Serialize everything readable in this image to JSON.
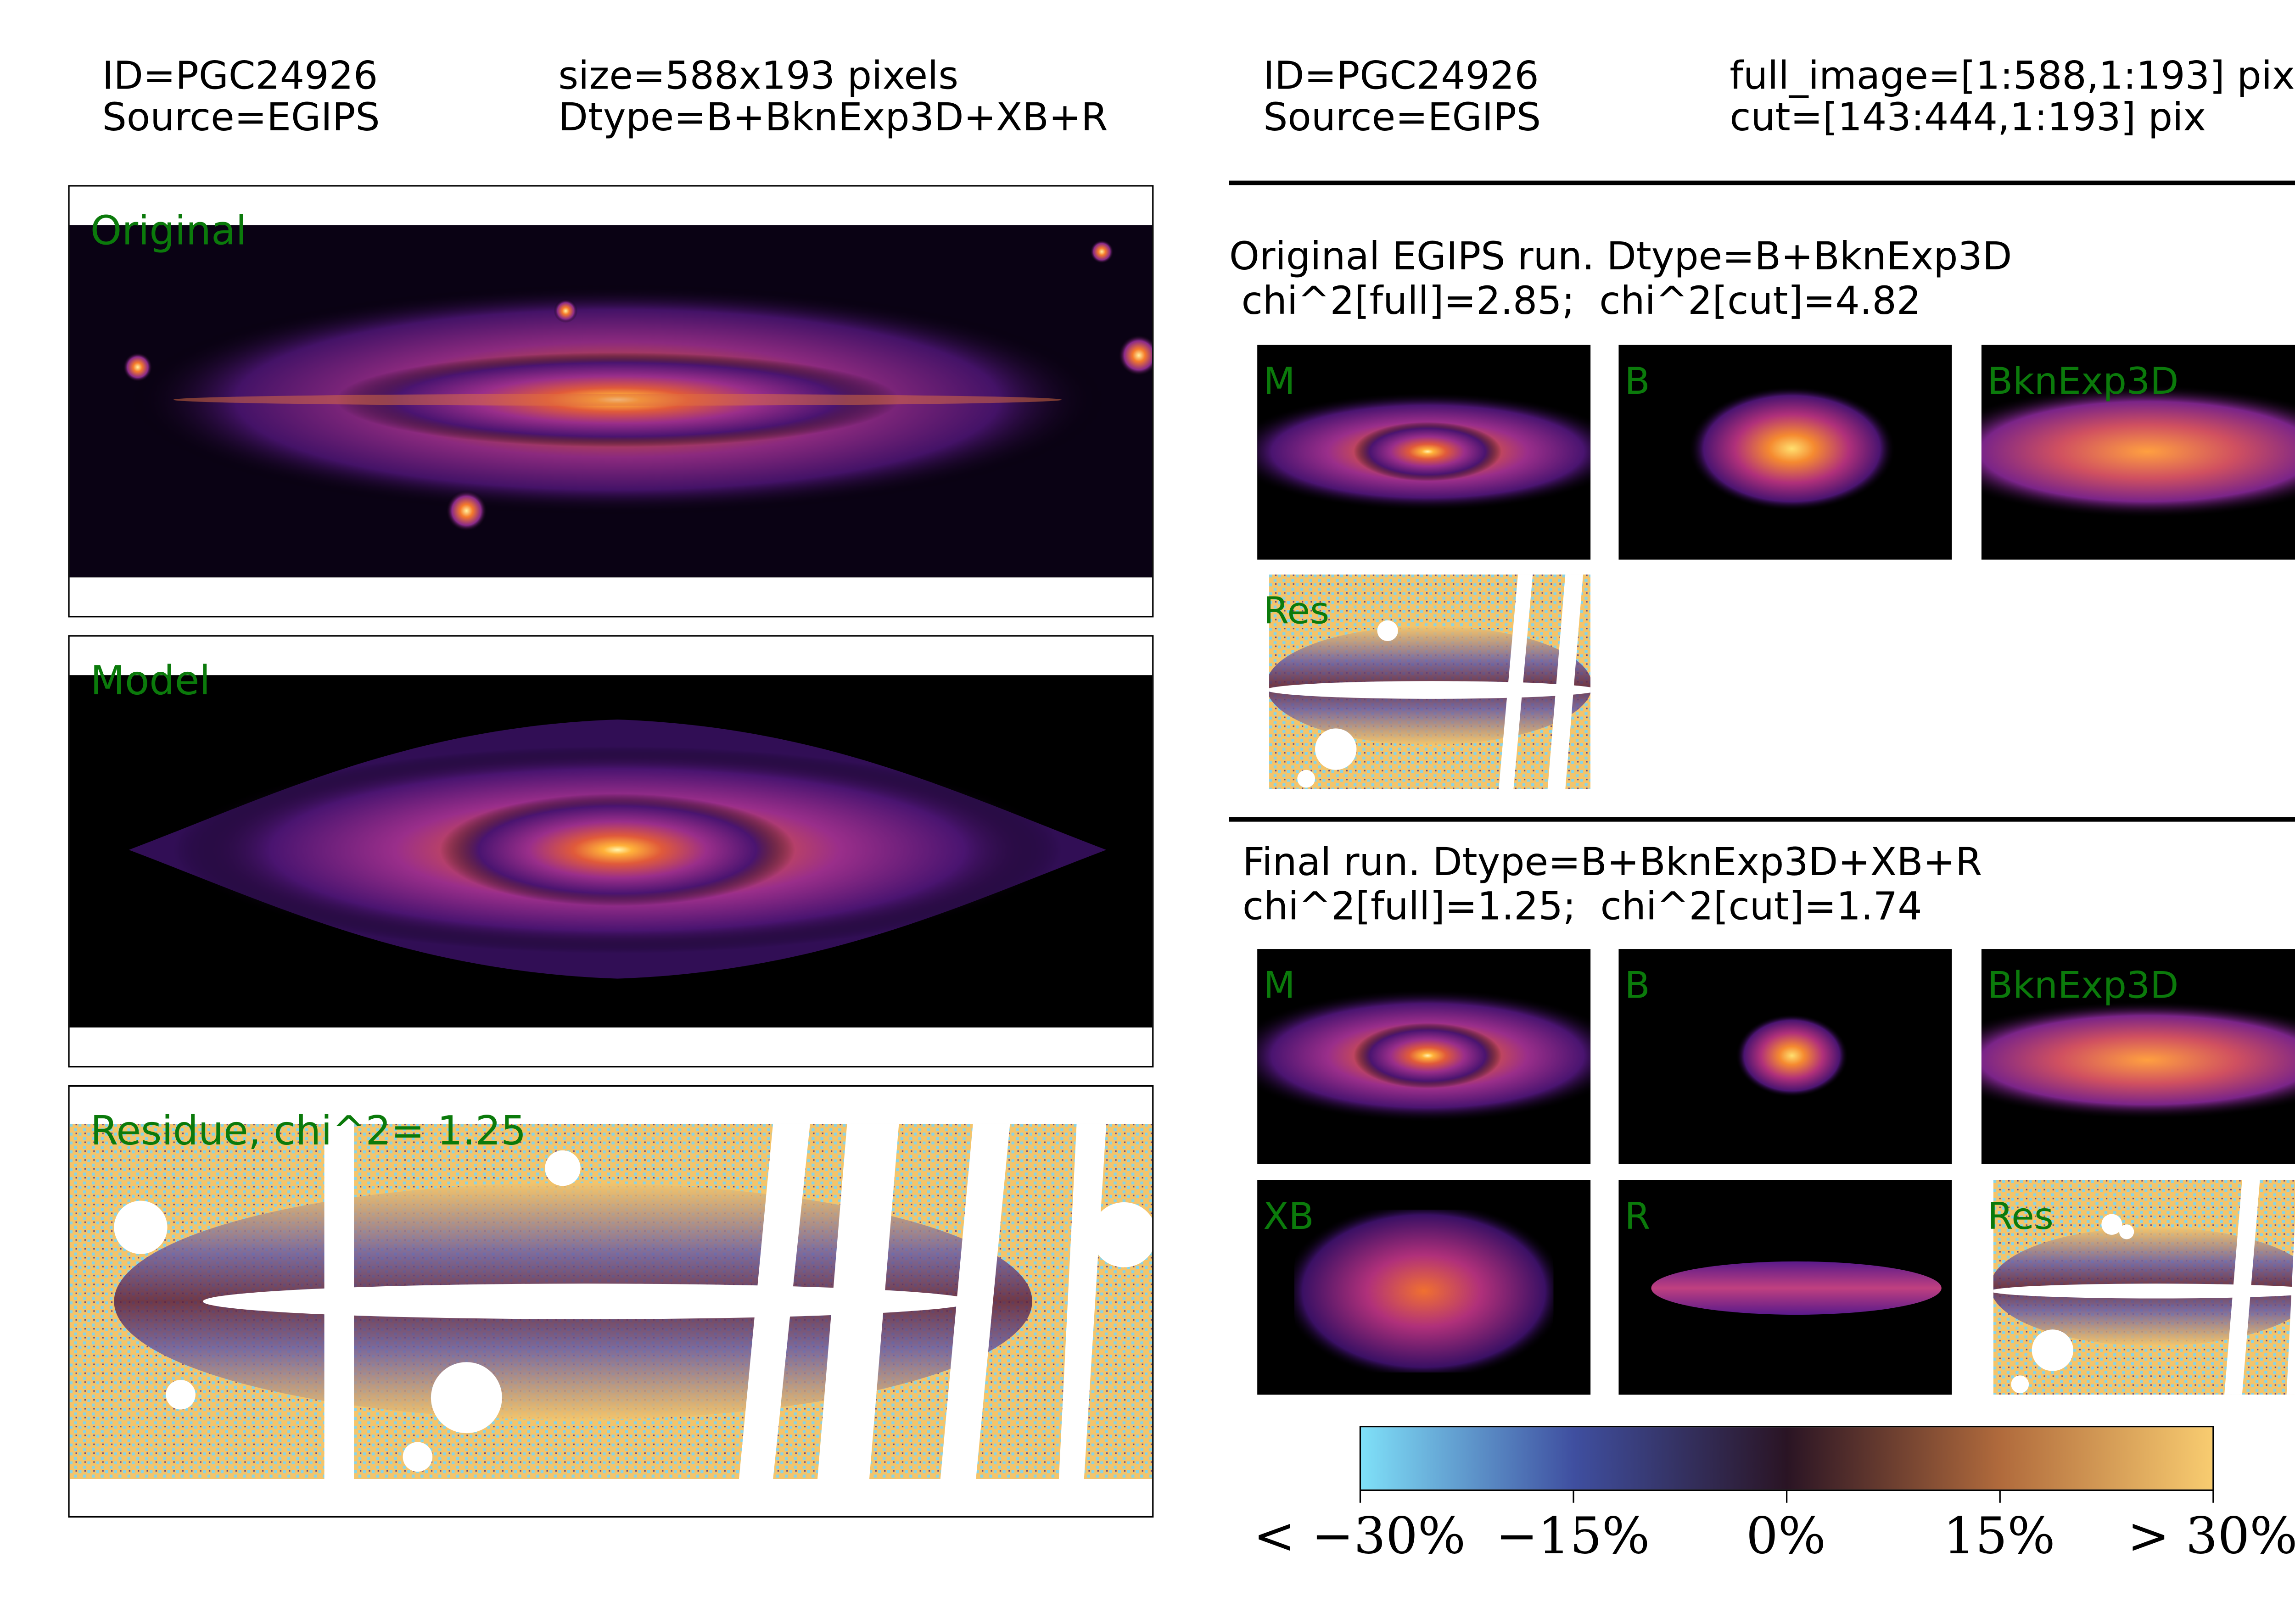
{
  "left_header": {
    "id": "ID=PGC24926",
    "source": "Source=EGIPS",
    "size": "size=588x193 pixels",
    "dtype": "Dtype=B+BknExp3D+XB+R"
  },
  "right_header": {
    "id": "ID=PGC24926",
    "source": "Source=EGIPS",
    "full_image": "full_image=[1:588,1:193] pix",
    "cut": "cut=[143:444,1:193] pix"
  },
  "panels": {
    "original": "Original",
    "model": "Model",
    "residue": "Residue, chi^2=  1.25"
  },
  "original_run": {
    "title": "Original EGIPS run. Dtype=B+BknExp3D",
    "chi2": " chi^2[full]=2.85;  chi^2[cut]=4.82",
    "labels": [
      "M",
      "B",
      "BknExp3D",
      "Res"
    ]
  },
  "final_run": {
    "title": "Final run. Dtype=B+BknExp3D+XB+R",
    "chi2": "chi^2[full]=1.25;  chi^2[cut]=1.74",
    "labels": [
      "M",
      "B",
      "BknExp3D",
      "XB",
      "R",
      "Res"
    ]
  },
  "colorbar": {
    "ticks": [
      "< −30%",
      "−15%",
      "0%",
      "15%",
      "> 30%"
    ],
    "colors": [
      "#7fe0f8",
      "#3f4fa0",
      "#2a1424",
      "#b06a3c",
      "#f8cc70"
    ]
  }
}
